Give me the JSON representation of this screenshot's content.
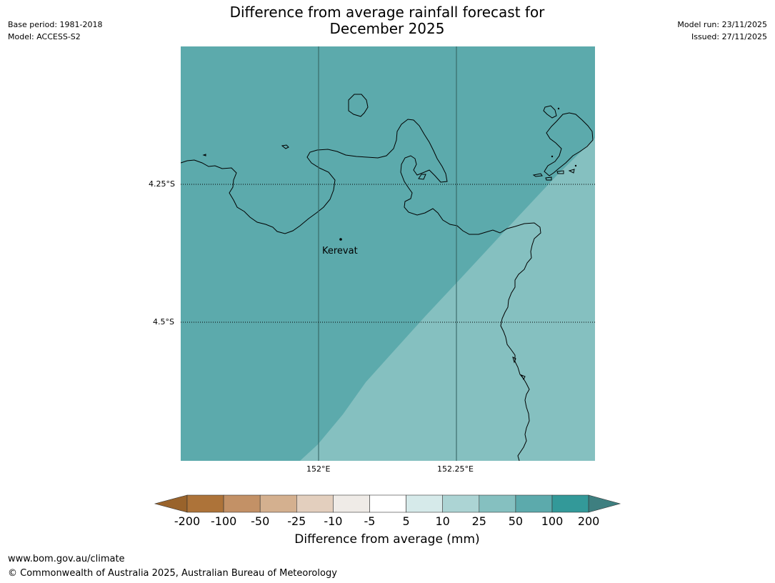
{
  "meta": {
    "base_period": "Base period: 1981-2018",
    "model": "Model: ACCESS-S2",
    "model_run": "Model run: 23/11/2025",
    "issued": "Issued: 27/11/2025"
  },
  "title": {
    "line1": "Difference from average rainfall forecast for",
    "line2": "December 2025"
  },
  "map": {
    "lat_labels": [
      "4.25°S",
      "4.5°S"
    ],
    "lon_labels": [
      "152°E",
      "152.25°E"
    ],
    "place": {
      "name": "Kerevat"
    },
    "fill_colors": {
      "dark": "#5caaac",
      "light": "#85c0c0"
    },
    "categories_shown": [
      "25 to 50 mm",
      "50 to 100 mm"
    ]
  },
  "colorbar": {
    "ticks": [
      "-200",
      "-100",
      "-50",
      "-25",
      "-10",
      "-5",
      "5",
      "10",
      "25",
      "50",
      "100",
      "200"
    ],
    "colors": [
      "#ad7339",
      "#c39166",
      "#d4b08f",
      "#e3cfbe",
      "#efebe7",
      "#ffffff",
      "#d6eaea",
      "#acd4d4",
      "#85c0c0",
      "#5caaac",
      "#339999"
    ],
    "extend_low_color": "#99632b",
    "extend_high_color": "#3e7f80",
    "label": "Difference from average (mm)"
  },
  "footer": {
    "url": "www.bom.gov.au/climate",
    "copyright": "© Commonwealth of Australia 2025, Australian Bureau of Meteorology"
  }
}
